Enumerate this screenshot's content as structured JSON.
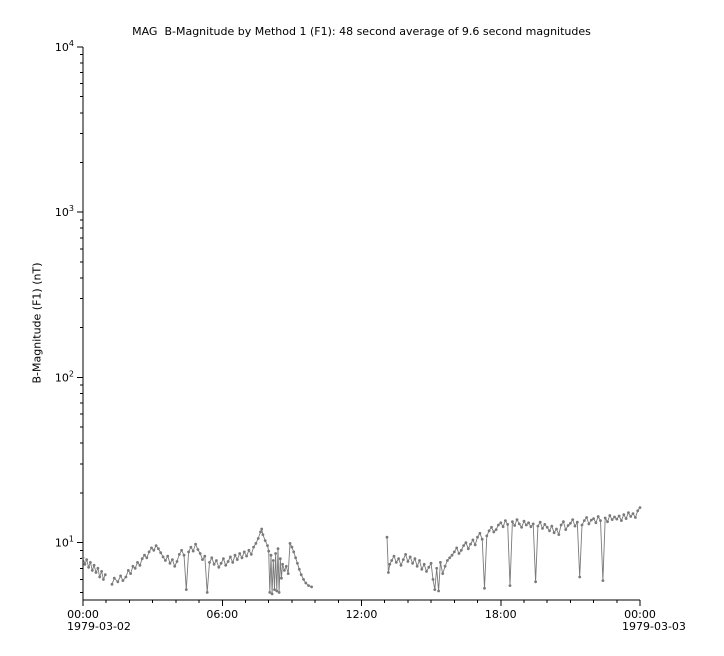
{
  "title": "MAG  B-Magnitude by Method 1 (F1): 48 second average of 9.6 second magnitudes",
  "chart_data": {
    "type": "line",
    "title": "MAG  B-Magnitude by Method 1 (F1): 48 second average of 9.6 second magnitudes",
    "xlabel": "",
    "ylabel": "B-Magnitude (F1) (nT)",
    "grid": false,
    "legend": "none",
    "x_axis": {
      "range_hours": [
        0,
        24
      ],
      "tick_hours": [
        0,
        6,
        12,
        18,
        24
      ],
      "tick_labels": [
        "00:00",
        "06:00",
        "12:00",
        "18:00",
        "00:00"
      ],
      "minor_tick_every_hours": 1,
      "start_date_label": "1979-03-02",
      "end_date_label": "1979-03-03"
    },
    "y_axis": {
      "scale": "log",
      "range": [
        4.5,
        10000
      ],
      "decade_exponents": [
        1,
        2,
        3,
        4
      ],
      "decade_labels": [
        "10^1",
        "10^2",
        "10^3",
        "10^4"
      ],
      "label_base": "10"
    },
    "series": [
      {
        "name": "B-Magnitude (F1)",
        "color": "#7a7a7a",
        "marker": "dot",
        "gap_threshold_hours": 0.2,
        "points": [
          [
            0.0,
            8.1
          ],
          [
            0.08,
            7.4
          ],
          [
            0.16,
            7.9
          ],
          [
            0.24,
            7.1
          ],
          [
            0.32,
            7.6
          ],
          [
            0.4,
            6.8
          ],
          [
            0.48,
            7.3
          ],
          [
            0.56,
            6.6
          ],
          [
            0.64,
            7.0
          ],
          [
            0.72,
            6.2
          ],
          [
            0.8,
            6.7
          ],
          [
            0.88,
            6.0
          ],
          [
            0.96,
            6.4
          ],
          [
            1.25,
            5.6
          ],
          [
            1.35,
            6.1
          ],
          [
            1.5,
            5.8
          ],
          [
            1.62,
            6.3
          ],
          [
            1.72,
            5.9
          ],
          [
            1.85,
            6.2
          ],
          [
            1.95,
            6.8
          ],
          [
            2.05,
            6.5
          ],
          [
            2.15,
            7.2
          ],
          [
            2.25,
            7.0
          ],
          [
            2.35,
            7.6
          ],
          [
            2.45,
            7.3
          ],
          [
            2.55,
            8.0
          ],
          [
            2.65,
            8.4
          ],
          [
            2.75,
            8.1
          ],
          [
            2.85,
            8.8
          ],
          [
            2.95,
            9.3
          ],
          [
            3.05,
            9.0
          ],
          [
            3.15,
            9.6
          ],
          [
            3.25,
            9.2
          ],
          [
            3.35,
            8.7
          ],
          [
            3.45,
            8.2
          ],
          [
            3.55,
            7.8
          ],
          [
            3.65,
            8.3
          ],
          [
            3.75,
            7.5
          ],
          [
            3.85,
            7.9
          ],
          [
            3.95,
            7.2
          ],
          [
            4.05,
            7.7
          ],
          [
            4.15,
            8.5
          ],
          [
            4.25,
            9.0
          ],
          [
            4.35,
            8.4
          ],
          [
            4.45,
            5.2
          ],
          [
            4.55,
            8.8
          ],
          [
            4.65,
            9.4
          ],
          [
            4.75,
            8.9
          ],
          [
            4.85,
            9.8
          ],
          [
            4.95,
            9.1
          ],
          [
            5.05,
            8.6
          ],
          [
            5.15,
            7.9
          ],
          [
            5.25,
            8.3
          ],
          [
            5.35,
            5.0
          ],
          [
            5.45,
            7.6
          ],
          [
            5.55,
            8.1
          ],
          [
            5.65,
            7.4
          ],
          [
            5.75,
            7.8
          ],
          [
            5.85,
            7.1
          ],
          [
            5.95,
            7.5
          ],
          [
            6.05,
            8.0
          ],
          [
            6.15,
            7.3
          ],
          [
            6.25,
            7.7
          ],
          [
            6.35,
            8.2
          ],
          [
            6.45,
            7.6
          ],
          [
            6.55,
            8.4
          ],
          [
            6.65,
            7.9
          ],
          [
            6.75,
            8.6
          ],
          [
            6.85,
            8.1
          ],
          [
            6.95,
            8.8
          ],
          [
            7.05,
            8.3
          ],
          [
            7.15,
            9.0
          ],
          [
            7.25,
            8.5
          ],
          [
            7.35,
            9.4
          ],
          [
            7.45,
            9.9
          ],
          [
            7.55,
            10.6
          ],
          [
            7.65,
            11.6
          ],
          [
            7.7,
            12.1
          ],
          [
            7.75,
            11.2
          ],
          [
            7.85,
            10.3
          ],
          [
            7.95,
            9.6
          ],
          [
            8.0,
            8.9
          ],
          [
            8.05,
            5.0
          ],
          [
            8.1,
            8.4
          ],
          [
            8.15,
            4.9
          ],
          [
            8.2,
            7.8
          ],
          [
            8.25,
            5.2
          ],
          [
            8.3,
            8.6
          ],
          [
            8.35,
            5.1
          ],
          [
            8.4,
            9.2
          ],
          [
            8.45,
            5.0
          ],
          [
            8.5,
            8.0
          ],
          [
            8.55,
            6.1
          ],
          [
            8.6,
            7.4
          ],
          [
            8.68,
            6.8
          ],
          [
            8.76,
            7.2
          ],
          [
            8.84,
            6.5
          ],
          [
            8.92,
            9.9
          ],
          [
            9.0,
            9.4
          ],
          [
            9.08,
            8.8
          ],
          [
            9.16,
            8.1
          ],
          [
            9.24,
            7.5
          ],
          [
            9.32,
            6.9
          ],
          [
            9.4,
            6.4
          ],
          [
            9.5,
            6.0
          ],
          [
            9.6,
            5.7
          ],
          [
            9.72,
            5.5
          ],
          [
            9.85,
            5.4
          ],
          [
            13.1,
            10.8
          ],
          [
            13.16,
            6.6
          ],
          [
            13.22,
            7.4
          ],
          [
            13.3,
            7.8
          ],
          [
            13.4,
            8.3
          ],
          [
            13.5,
            7.6
          ],
          [
            13.6,
            8.0
          ],
          [
            13.7,
            7.3
          ],
          [
            13.8,
            7.9
          ],
          [
            13.9,
            8.5
          ],
          [
            14.0,
            7.7
          ],
          [
            14.1,
            8.2
          ],
          [
            14.2,
            7.5
          ],
          [
            14.3,
            8.0
          ],
          [
            14.4,
            7.2
          ],
          [
            14.5,
            7.8
          ],
          [
            14.6,
            6.9
          ],
          [
            14.7,
            7.4
          ],
          [
            14.8,
            6.7
          ],
          [
            14.9,
            7.1
          ],
          [
            15.0,
            7.5
          ],
          [
            15.08,
            6.0
          ],
          [
            15.16,
            5.2
          ],
          [
            15.24,
            7.0
          ],
          [
            15.32,
            5.1
          ],
          [
            15.4,
            7.6
          ],
          [
            15.5,
            6.5
          ],
          [
            15.6,
            7.2
          ],
          [
            15.7,
            7.8
          ],
          [
            15.8,
            8.1
          ],
          [
            15.9,
            8.4
          ],
          [
            16.0,
            8.8
          ],
          [
            16.1,
            9.3
          ],
          [
            16.2,
            8.6
          ],
          [
            16.3,
            9.0
          ],
          [
            16.4,
            9.6
          ],
          [
            16.5,
            10.0
          ],
          [
            16.6,
            9.2
          ],
          [
            16.7,
            9.8
          ],
          [
            16.8,
            10.4
          ],
          [
            16.9,
            9.7
          ],
          [
            17.0,
            10.8
          ],
          [
            17.1,
            11.4
          ],
          [
            17.2,
            10.5
          ],
          [
            17.3,
            5.3
          ],
          [
            17.4,
            11.0
          ],
          [
            17.5,
            11.8
          ],
          [
            17.6,
            12.4
          ],
          [
            17.7,
            11.6
          ],
          [
            17.8,
            12.0
          ],
          [
            17.9,
            12.8
          ],
          [
            18.0,
            13.2
          ],
          [
            18.1,
            12.5
          ],
          [
            18.2,
            13.6
          ],
          [
            18.3,
            12.9
          ],
          [
            18.4,
            5.5
          ],
          [
            18.5,
            13.4
          ],
          [
            18.6,
            12.7
          ],
          [
            18.7,
            13.8
          ],
          [
            18.8,
            13.0
          ],
          [
            18.9,
            12.4
          ],
          [
            19.0,
            13.5
          ],
          [
            19.1,
            12.8
          ],
          [
            19.2,
            13.2
          ],
          [
            19.3,
            12.5
          ],
          [
            19.4,
            13.0
          ],
          [
            19.5,
            5.8
          ],
          [
            19.6,
            12.6
          ],
          [
            19.7,
            13.3
          ],
          [
            19.8,
            12.2
          ],
          [
            19.9,
            12.9
          ],
          [
            20.0,
            12.4
          ],
          [
            20.1,
            11.8
          ],
          [
            20.2,
            12.6
          ],
          [
            20.3,
            11.5
          ],
          [
            20.4,
            12.1
          ],
          [
            20.5,
            11.2
          ],
          [
            20.6,
            12.8
          ],
          [
            20.7,
            13.4
          ],
          [
            20.8,
            12.0
          ],
          [
            20.9,
            12.7
          ],
          [
            21.0,
            13.1
          ],
          [
            21.1,
            13.8
          ],
          [
            21.2,
            12.6
          ],
          [
            21.3,
            13.3
          ],
          [
            21.4,
            6.2
          ],
          [
            21.5,
            12.8
          ],
          [
            21.6,
            13.6
          ],
          [
            21.7,
            14.2
          ],
          [
            21.8,
            13.0
          ],
          [
            21.9,
            13.7
          ],
          [
            22.0,
            14.0
          ],
          [
            22.1,
            13.2
          ],
          [
            22.2,
            14.4
          ],
          [
            22.3,
            13.6
          ],
          [
            22.4,
            5.9
          ],
          [
            22.5,
            14.1
          ],
          [
            22.6,
            13.4
          ],
          [
            22.7,
            14.6
          ],
          [
            22.8,
            13.8
          ],
          [
            22.9,
            14.3
          ],
          [
            23.0,
            13.9
          ],
          [
            23.1,
            14.5
          ],
          [
            23.2,
            13.6
          ],
          [
            23.3,
            14.8
          ],
          [
            23.4,
            14.0
          ],
          [
            23.5,
            15.2
          ],
          [
            23.6,
            14.4
          ],
          [
            23.7,
            15.0
          ],
          [
            23.8,
            14.2
          ],
          [
            23.9,
            15.6
          ],
          [
            24.0,
            16.3
          ]
        ]
      }
    ]
  }
}
